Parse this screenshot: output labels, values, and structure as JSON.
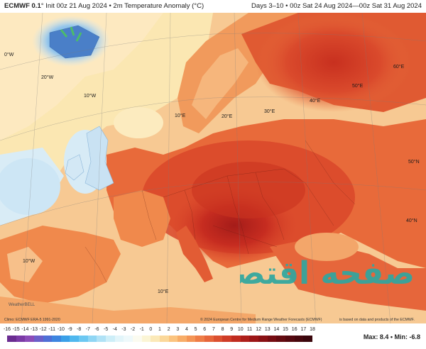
{
  "header": {
    "model": "ECMWF 0.1",
    "degree_mark": "°",
    "init_text": "Init 00z 21 Aug 2024 • 2m Temperature Anomaly (°C)",
    "range_text": "Days 3–10 • 00z Sat 24 Aug 2024—00z Sat 31 Aug 2024"
  },
  "grid_labels": {
    "lon_0w": "0°W",
    "lon_20w": "20°W",
    "lon_10w": "10°W",
    "lon_10e_top": "10°E",
    "lon_20e": "20°E",
    "lon_30e": "30°E",
    "lon_40e": "40°E",
    "lon_50e": "50°E",
    "lon_60e": "60°E",
    "lat_50n": "50°N",
    "lat_40n": "40°N",
    "lon_10w_bottom": "10°W",
    "lon_10e_bottom": "10°E"
  },
  "credits": {
    "climo": "Climo: ECMWF ERA-5 1991-2020",
    "copyright": "© 2024 European Centre for Medium Range Weather Forecasts (ECMWF)",
    "license": "is based on data and products of the ECMWF.",
    "logo": "WeatherBELL"
  },
  "scale": {
    "ticks": [
      "-16",
      "-15",
      "-14",
      "-13",
      "-12",
      "-11",
      "-10",
      "-9",
      "-8",
      "-7",
      "-6",
      "-5",
      "-4",
      "-3",
      "-2",
      "-1",
      "0",
      "1",
      "2",
      "3",
      "4",
      "5",
      "6",
      "7",
      "8",
      "9",
      "10",
      "11",
      "12",
      "13",
      "14",
      "15",
      "16",
      "17",
      "18"
    ],
    "colors": [
      "#6a2c91",
      "#7b3aa6",
      "#8b4cb8",
      "#6b5fc9",
      "#4f6fd6",
      "#3d85e0",
      "#3aa0e8",
      "#4fb8ef",
      "#6cc8f2",
      "#8fd6f4",
      "#b0e2f6",
      "#cdeef8",
      "#e2f5fa",
      "#eef9fb",
      "#fbfbf0",
      "#fbf5d5",
      "#fbe9b8",
      "#fbd89a",
      "#fbc47f",
      "#f8ad68",
      "#f49556",
      "#ee7d47",
      "#e6663b",
      "#db5030",
      "#cf3c27",
      "#c02c20",
      "#ae1f1b",
      "#9c1617",
      "#891014",
      "#760c12",
      "#640a10",
      "#54080f",
      "#46070d",
      "#3a060c"
    ]
  },
  "stats": {
    "text": "Max: 8.4 • Min: -6.8"
  },
  "watermark_text": "صفحه اقتصاد",
  "colors": {
    "sea_warm": "#f9c98c",
    "land_hot": "#d9462a",
    "core_hot": "#a81e1a",
    "cool": "#c5e3f5"
  }
}
